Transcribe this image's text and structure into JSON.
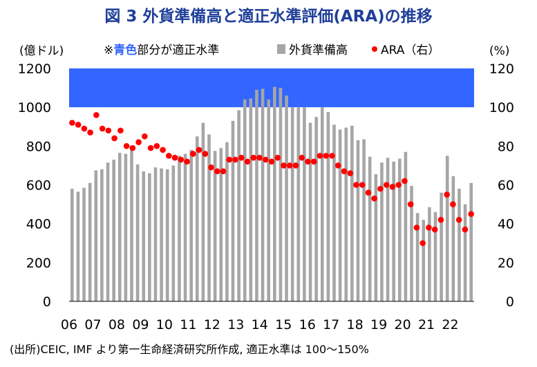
{
  "title": "図 3 外貨準備高と適正水準評価(ARA)の推移",
  "source": "(出所)CEIC, IMF より第一生命経済研究所作成, 適正水準は 100～150%",
  "colors": {
    "bar": "#a6a6a6",
    "dot": "#ff0000",
    "band": "#3366ff",
    "title": "#1f3f99"
  },
  "chart_data": {
    "type": "bar+scatter",
    "title": "図 3 外貨準備高と適正水準評価(ARA)の推移",
    "y_left_unit": "(億ドル)",
    "y_right_unit": "(%)",
    "ylim_left": [
      0,
      1200
    ],
    "ylim_right": [
      0,
      120
    ],
    "y_left_ticks": [
      "0",
      "200",
      "400",
      "600",
      "800",
      "1000",
      "1200"
    ],
    "y_right_ticks": [
      "0",
      "20",
      "40",
      "60",
      "80",
      "100",
      "120"
    ],
    "x_ticks": [
      "06",
      "07",
      "08",
      "09",
      "10",
      "11",
      "12",
      "13",
      "14",
      "15",
      "16",
      "17",
      "18",
      "19",
      "20",
      "21",
      "22"
    ],
    "x_start_year": 2006,
    "band": {
      "label_prefix": "※",
      "label_highlight": "青色",
      "label_suffix": "部分が適正水準",
      "from": 100,
      "to": 150
    },
    "legend": {
      "bar": "外貨準備高",
      "dot": "ARA（右）"
    },
    "series": [
      {
        "name": "外貨準備高",
        "axis": "left",
        "values": [
          580,
          565,
          585,
          610,
          675,
          680,
          715,
          730,
          765,
          760,
          780,
          705,
          670,
          660,
          690,
          685,
          680,
          700,
          750,
          760,
          780,
          850,
          920,
          860,
          775,
          790,
          820,
          930,
          985,
          1040,
          1045,
          1090,
          1095,
          1040,
          1105,
          1100,
          1060,
          1000,
          1000,
          1000,
          920,
          950,
          1000,
          975,
          910,
          885,
          895,
          905,
          830,
          835,
          745,
          655,
          715,
          740,
          720,
          735,
          770,
          595,
          455,
          420,
          485,
          460,
          560,
          750,
          645,
          580,
          500,
          610
        ]
      },
      {
        "name": "ARA（右）",
        "axis": "right",
        "values": [
          92,
          91,
          89,
          87,
          96,
          89,
          88,
          84,
          88,
          80,
          79,
          82,
          85,
          79,
          80,
          78,
          75,
          74,
          73,
          72,
          76,
          78,
          76,
          69,
          67,
          67,
          73,
          73,
          74,
          72,
          74,
          74,
          73,
          72,
          74,
          70,
          70,
          70,
          74,
          72,
          72,
          75,
          75,
          75,
          70,
          67,
          66,
          60,
          60,
          56,
          53,
          58,
          60,
          59,
          60,
          62,
          50,
          38,
          30,
          38,
          37,
          42,
          55,
          50,
          42,
          37,
          45
        ]
      }
    ]
  }
}
